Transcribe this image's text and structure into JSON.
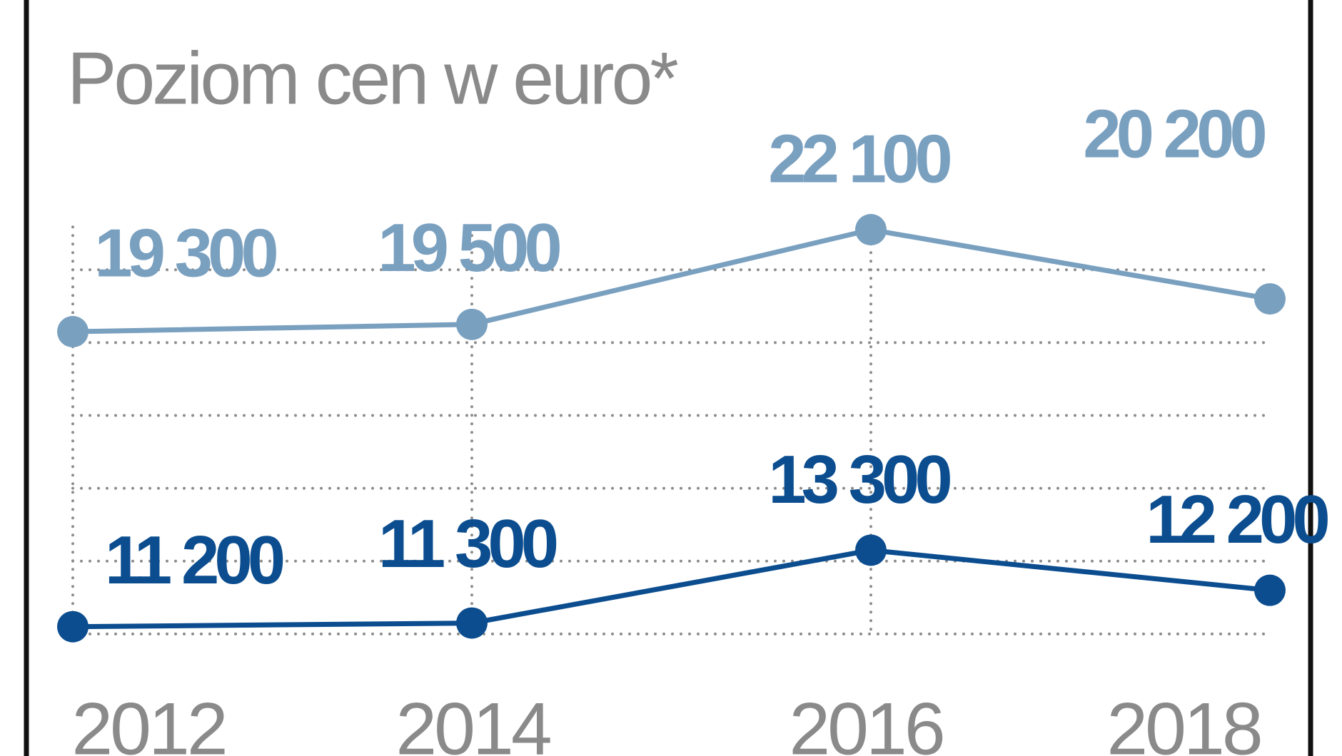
{
  "chart_data": {
    "type": "line",
    "title": "Poziom cen w euro*",
    "categories": [
      "2012",
      "2014",
      "2016",
      "2018"
    ],
    "series": [
      {
        "name": null,
        "color": "#7aa0c0",
        "values": [
          19300,
          19500,
          22100,
          20200
        ],
        "value_labels": [
          "19 300",
          "19 500",
          "22 100",
          "20 200"
        ]
      },
      {
        "name": null,
        "color": "#0b4d8f",
        "values": [
          11200,
          11300,
          13300,
          12200
        ],
        "value_labels": [
          "11 200",
          "11 300",
          "13 300",
          "12 200"
        ]
      }
    ],
    "ylim": [
      10000,
      24000
    ],
    "yticks": [
      11000,
      13000,
      15000,
      17000,
      19000,
      21000
    ],
    "grid": true
  }
}
